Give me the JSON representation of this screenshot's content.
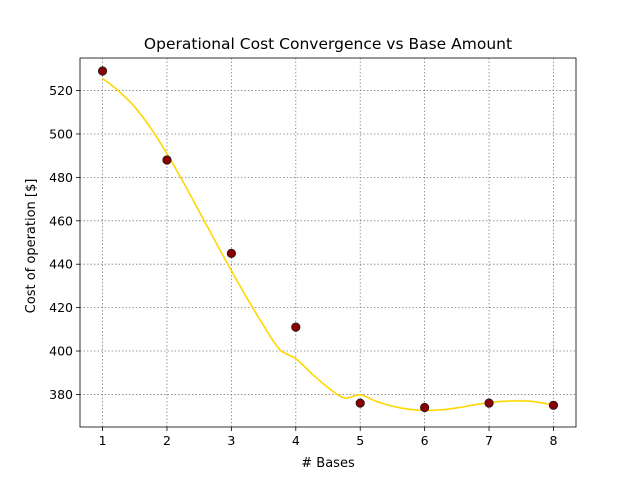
{
  "chart_data": {
    "type": "scatter",
    "title": "Operational Cost Convergence vs Base Amount",
    "xlabel": "# Bases",
    "ylabel": "Cost of operation [$]",
    "xlim": [
      0.65,
      8.35
    ],
    "ylim": [
      365,
      535
    ],
    "xticks": [
      1,
      2,
      3,
      4,
      5,
      6,
      7,
      8
    ],
    "yticks": [
      380,
      400,
      420,
      440,
      460,
      480,
      500,
      520
    ],
    "grid": true,
    "points": {
      "x": [
        1,
        2,
        3,
        4,
        5,
        6,
        7,
        8
      ],
      "y": [
        529,
        488,
        445,
        411,
        376,
        374,
        376,
        375
      ],
      "color": "#8b0000",
      "edge_color": "#1a1a1a"
    },
    "fit_curve": {
      "x": [
        1.0,
        1.25,
        1.5,
        1.75,
        2.0,
        2.25,
        2.5,
        2.75,
        3.0,
        3.25,
        3.5,
        3.75,
        4.0,
        4.25,
        4.5,
        4.75,
        5.0,
        5.25,
        5.5,
        5.75,
        6.0,
        6.25,
        6.5,
        6.75,
        7.0,
        7.25,
        7.5,
        7.75,
        8.0
      ],
      "y": [
        525.6,
        519.8,
        512.4,
        502.6,
        490.9,
        478.0,
        464.3,
        450.5,
        437.0,
        424.0,
        411.8,
        400.7,
        396.5,
        389.5,
        383.2,
        378.4,
        379.8,
        376.8,
        374.6,
        373.2,
        372.6,
        372.9,
        373.8,
        375.1,
        376.2,
        376.9,
        377.0,
        376.5,
        375.0
      ],
      "color": "#ffd700"
    }
  }
}
